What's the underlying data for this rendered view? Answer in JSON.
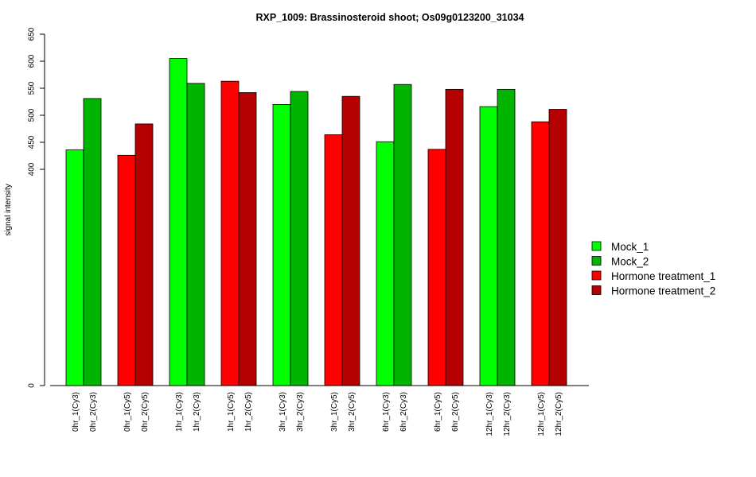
{
  "chart_data": {
    "type": "bar",
    "title": "RXP_1009: Brassinosteroid shoot; Os09g0123200_31034",
    "xlabel": "",
    "ylabel": "signal intensity",
    "y_ticks": [
      0,
      400,
      450,
      500,
      550,
      600,
      650
    ],
    "y_ticks_label": [
      "0",
      "400",
      "450",
      "500",
      "550",
      "600",
      "650"
    ],
    "ylim": [
      0,
      650
    ],
    "grid": false,
    "legend_position": "right",
    "categories": [
      "0hr_1(Cy3)",
      "0hr_2(Cy3)",
      "0hr_1(Cy5)",
      "0hr_2(Cy5)",
      "1hr_1(Cy3)",
      "1hr_2(Cy3)",
      "1hr_1(Cy5)",
      "1hr_2(Cy5)",
      "3hr_1(Cy3)",
      "3hr_2(Cy3)",
      "3hr_1(Cy5)",
      "3hr_2(Cy5)",
      "6hr_1(Cy3)",
      "6hr_2(Cy3)",
      "6hr_1(Cy5)",
      "6hr_2(Cy5)",
      "12hr_1(Cy3)",
      "12hr_2(Cy3)",
      "12hr_1(Cy5)",
      "12hr_2(Cy5)"
    ],
    "values": [
      436,
      531,
      426,
      484,
      605,
      559,
      563,
      542,
      520,
      544,
      464,
      535,
      451,
      557,
      437,
      548,
      516,
      548,
      488,
      511
    ],
    "bar_series": [
      0,
      1,
      2,
      3,
      0,
      1,
      2,
      3,
      0,
      1,
      2,
      3,
      0,
      1,
      2,
      3,
      0,
      1,
      2,
      3
    ],
    "series": [
      {
        "name": "Mock_1",
        "color": "#00ff00"
      },
      {
        "name": "Mock_2",
        "color": "#00b400"
      },
      {
        "name": "Hormone treatment_1",
        "color": "#ff0000"
      },
      {
        "name": "Hormone treatment_2",
        "color": "#b40000"
      }
    ]
  }
}
